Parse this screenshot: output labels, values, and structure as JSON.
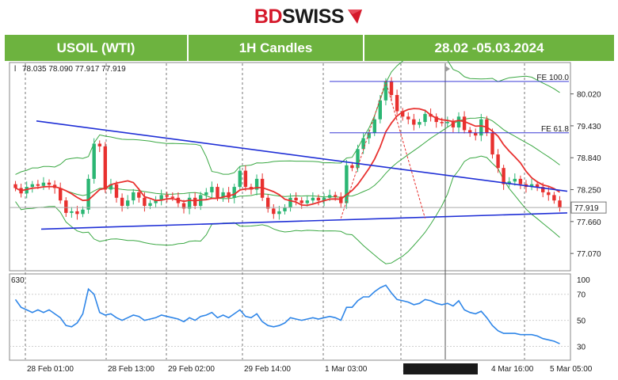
{
  "brand": {
    "part1": "BD",
    "part2": "SWISS"
  },
  "header": {
    "instrument": "USOIL (WTI)",
    "timeframe": "1H Candles",
    "period": "28.02 -05.03.2024"
  },
  "ohlc_readout": "78.035 78.090 77.917 77.919",
  "last_price_label": "77.919",
  "crosshair_time_label": "2024.03.04 09:45",
  "rsi_level_top": "630",
  "fib_labels": {
    "upper": "FE 100.0",
    "lower": "FE 61.8"
  },
  "colors": {
    "header_green": "#6db33f",
    "bull": "#2bb673",
    "bear": "#e8312f",
    "ma": "#e8312f",
    "bands": "#3aa843",
    "trend": "#1f2fd6",
    "rsi": "#2f86e8"
  },
  "chart_data": [
    {
      "type": "candlestick",
      "ylim": [
        76.75,
        80.6
      ],
      "y_ticks": [
        "80.020",
        "79.430",
        "78.840",
        "78.250",
        "77.660",
        "77.070"
      ],
      "x_ticks": [
        "28 Feb 01:00",
        "28 Feb 13:00",
        "29 Feb 02:00",
        "29 Feb 14:00",
        "1 Mar 03:00",
        "1 Mar 15:00",
        "4 Mar 16:00",
        "5 Mar 05:00"
      ],
      "close": [
        78.28,
        78.18,
        78.3,
        78.35,
        78.32,
        78.38,
        78.34,
        78.28,
        78.05,
        77.82,
        77.85,
        77.8,
        77.88,
        78.45,
        79.1,
        79.05,
        78.25,
        78.35,
        78.1,
        77.95,
        78.05,
        78.2,
        78.1,
        77.95,
        78.0,
        78.05,
        78.15,
        78.12,
        78.1,
        78.0,
        77.9,
        78.1,
        77.95,
        78.15,
        78.2,
        78.3,
        78.1,
        78.2,
        78.1,
        78.3,
        78.6,
        78.3,
        78.25,
        78.45,
        78.1,
        77.9,
        77.8,
        77.85,
        77.92,
        78.1,
        78.05,
        78.0,
        78.05,
        78.1,
        78.05,
        78.1,
        78.15,
        78.12,
        78.0,
        78.7,
        78.65,
        79.0,
        79.2,
        79.3,
        79.55,
        79.9,
        80.25,
        80.0,
        79.7,
        79.6,
        79.55,
        79.45,
        79.5,
        79.65,
        79.6,
        79.5,
        79.48,
        79.5,
        79.4,
        79.6,
        79.35,
        79.3,
        79.25,
        79.55,
        79.3,
        78.9,
        78.65,
        78.35,
        78.4,
        78.45,
        78.35,
        78.3,
        78.35,
        78.3,
        78.2,
        78.15,
        78.05,
        77.92
      ]
    },
    {
      "type": "line",
      "name": "",
      "ylim": [
        20,
        85
      ],
      "y_ticks": [
        "100",
        "70",
        "50",
        "30"
      ],
      "values": [
        66,
        60,
        58,
        56,
        58,
        56,
        58,
        55,
        52,
        46,
        45,
        48,
        55,
        74,
        70,
        56,
        54,
        55,
        52,
        50,
        52,
        54,
        53,
        50,
        51,
        52,
        54,
        53,
        52,
        51,
        49,
        52,
        50,
        53,
        54,
        56,
        52,
        54,
        52,
        55,
        58,
        53,
        52,
        55,
        49,
        46,
        45,
        46,
        48,
        52,
        51,
        50,
        51,
        52,
        51,
        52,
        53,
        52,
        50,
        60,
        60,
        65,
        68,
        68,
        72,
        75,
        77,
        71,
        66,
        65,
        64,
        62,
        63,
        66,
        65,
        63,
        62,
        63,
        61,
        65,
        58,
        56,
        55,
        57,
        52,
        46,
        42,
        40,
        40,
        40,
        39,
        39,
        39,
        38,
        36,
        35,
        34,
        32
      ]
    }
  ]
}
